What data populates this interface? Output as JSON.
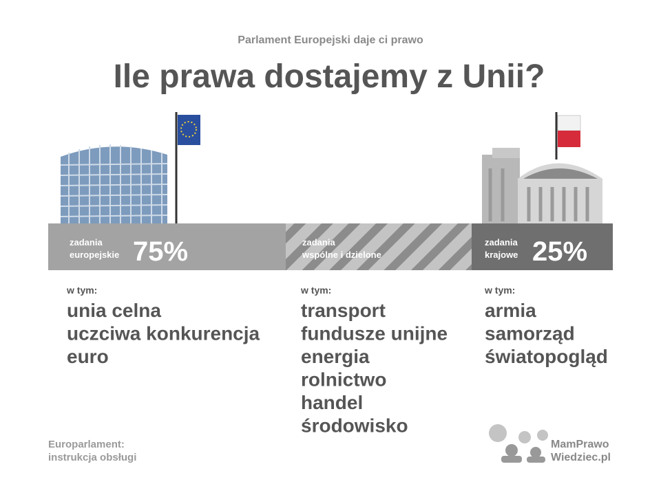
{
  "header": {
    "kicker": "Parlament Europejski daje ci prawo",
    "title": "Ile prawa dostajemy z Unii?"
  },
  "columns": [
    {
      "label_lines": [
        "zadania",
        "europejskie"
      ],
      "share": "75%",
      "intro": "w tym:",
      "items": [
        "unia celna",
        "uczciwa konkurencja",
        "euro"
      ]
    },
    {
      "label_lines": [
        "zadania",
        "wspólne i dzielone"
      ],
      "intro": "w tym:",
      "items": [
        "transport",
        "fundusze unijne",
        "energia",
        "rolnictwo",
        "handel",
        "środowisko"
      ]
    },
    {
      "label_lines": [
        "zadania",
        "krajowe"
      ],
      "share": "25%",
      "intro": "w tym:",
      "items": [
        "armia",
        "samorząd",
        "światopogląd"
      ]
    }
  ],
  "footer": {
    "left_lines": [
      "Europarlament:",
      "instrukcja obsługi"
    ],
    "logo_lines": [
      "MamPrawo",
      "Wiedziec.pl"
    ]
  }
}
